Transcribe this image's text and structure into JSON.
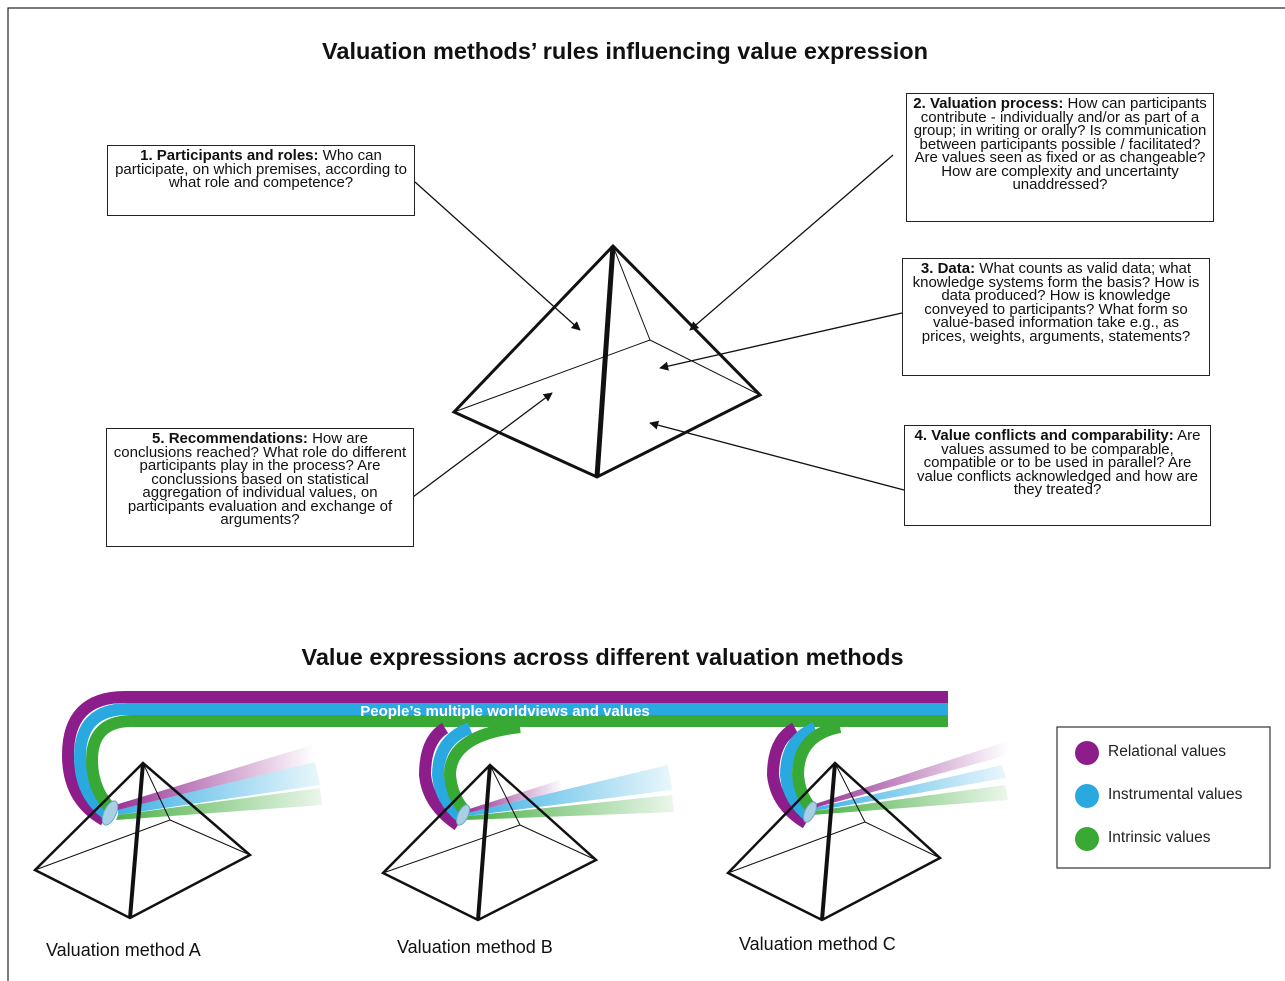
{
  "title": "Valuation methods’ rules influencing value expression",
  "boxes": [
    {
      "heading": "1. Participants and roles:",
      "text": "Who can participate, on which premises, according to what role and competence?"
    },
    {
      "heading": "2. Valuation process:",
      "text": "How can participants contribute - individually and/or as part of a group; in writing or orally? Is communication between participants possible / facilitated? Are values seen as fixed or as changeable? How are complexity and uncertainty unaddressed?"
    },
    {
      "heading": "3. Data:",
      "text": "What counts as valid data; what knowledge systems form the basis? How is data produced? How is knowledge conveyed to participants? What form so value-based information take e.g., as prices, weights, arguments, statements?"
    },
    {
      "heading": "4. Value conflicts and comparability:",
      "text": "Are values assumed to be comparable, compatible or to be used in parallel? Are value conflicts acknowledged and how are they treated?"
    },
    {
      "heading": "5. Recommendations:",
      "text": "How are conclusions reached? What role do different participants play in the process? Are conclussions based on statistical aggregation of individual values, on participants evaluation and exchange of arguments?"
    }
  ],
  "subtitle": "Value expressions across different valuation methods",
  "band_label": "People’s multiple worldviews and values",
  "methods": [
    "Valuation method A",
    "Valuation method B",
    "Valuation method C"
  ],
  "legend": [
    {
      "name": "Relational values",
      "color": "#8c1d8a"
    },
    {
      "name": "Instrumental values",
      "color": "#2aa9e1"
    },
    {
      "name": "Intrinsic values",
      "color": "#39a935"
    }
  ]
}
